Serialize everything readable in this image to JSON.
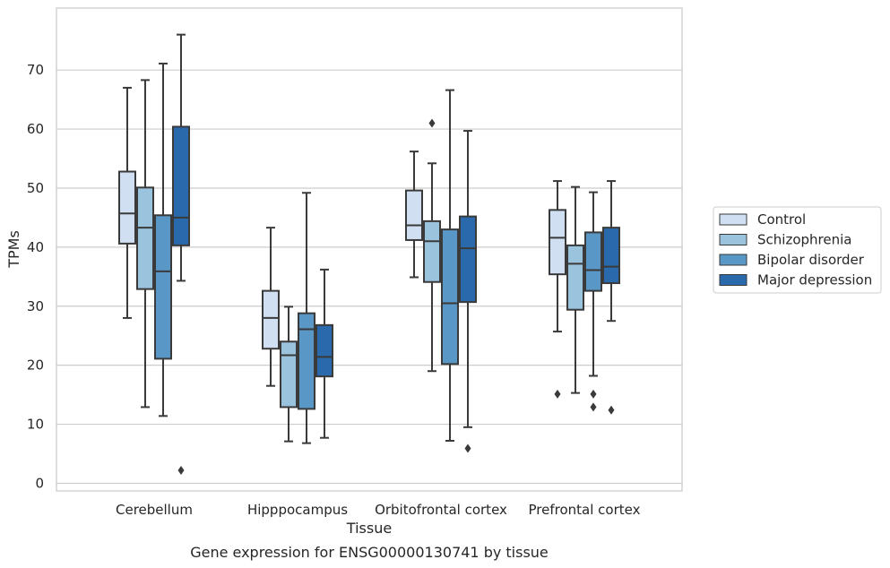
{
  "chart_data": {
    "type": "box",
    "caption": "Gene expression for ENSG00000130741 by tissue",
    "xlabel": "Tissue",
    "ylabel": "TPMs",
    "ylim": [
      -1.3,
      80.5
    ],
    "yticks": [
      0,
      10,
      20,
      30,
      40,
      50,
      60,
      70
    ],
    "grid": "horizontal",
    "legend_position": "right",
    "categories": [
      "Cerebellum",
      "Hipppocampus",
      "Orbitofrontal cortex",
      "Prefrontal cortex"
    ],
    "series": [
      {
        "name": "Control",
        "color": "#d0e0f2",
        "boxes": [
          {
            "whisker_low": 28.0,
            "q1": 40.6,
            "median": 45.7,
            "q3": 52.8,
            "whisker_high": 67.0,
            "outliers": []
          },
          {
            "whisker_low": 16.5,
            "q1": 22.8,
            "median": 28.0,
            "q3": 32.6,
            "whisker_high": 43.3,
            "outliers": []
          },
          {
            "whisker_low": 34.9,
            "q1": 41.2,
            "median": 43.7,
            "q3": 49.6,
            "whisker_high": 56.2,
            "outliers": []
          },
          {
            "whisker_low": 25.7,
            "q1": 35.4,
            "median": 41.6,
            "q3": 46.3,
            "whisker_high": 51.2,
            "outliers": [
              15.1
            ]
          }
        ]
      },
      {
        "name": "Schizophrenia",
        "color": "#9ac3dd",
        "boxes": [
          {
            "whisker_low": 12.9,
            "q1": 32.9,
            "median": 43.3,
            "q3": 50.1,
            "whisker_high": 68.3,
            "outliers": []
          },
          {
            "whisker_low": 7.1,
            "q1": 12.9,
            "median": 21.7,
            "q3": 24.0,
            "whisker_high": 29.9,
            "outliers": []
          },
          {
            "whisker_low": 19.0,
            "q1": 34.1,
            "median": 41.0,
            "q3": 44.4,
            "whisker_high": 54.2,
            "outliers": [
              61.0
            ]
          },
          {
            "whisker_low": 15.3,
            "q1": 29.4,
            "median": 37.2,
            "q3": 40.3,
            "whisker_high": 50.2,
            "outliers": []
          }
        ]
      },
      {
        "name": "Bipolar disorder",
        "color": "#5897c6",
        "boxes": [
          {
            "whisker_low": 11.4,
            "q1": 21.1,
            "median": 35.9,
            "q3": 45.4,
            "whisker_high": 71.1,
            "outliers": []
          },
          {
            "whisker_low": 6.8,
            "q1": 12.6,
            "median": 26.1,
            "q3": 28.8,
            "whisker_high": 49.2,
            "outliers": []
          },
          {
            "whisker_low": 7.2,
            "q1": 20.2,
            "median": 30.5,
            "q3": 43.0,
            "whisker_high": 66.6,
            "outliers": []
          },
          {
            "whisker_low": 18.2,
            "q1": 32.6,
            "median": 36.1,
            "q3": 42.5,
            "whisker_high": 49.3,
            "outliers": [
              15.1,
              12.9
            ]
          }
        ]
      },
      {
        "name": "Major depression",
        "color": "#2a6aac",
        "boxes": [
          {
            "whisker_low": 34.3,
            "q1": 40.3,
            "median": 45.0,
            "q3": 60.4,
            "whisker_high": 76.0,
            "outliers": [
              2.2
            ]
          },
          {
            "whisker_low": 7.7,
            "q1": 18.1,
            "median": 21.4,
            "q3": 26.8,
            "whisker_high": 36.2,
            "outliers": []
          },
          {
            "whisker_low": 9.5,
            "q1": 30.7,
            "median": 39.8,
            "q3": 45.2,
            "whisker_high": 59.7,
            "outliers": [
              5.9
            ]
          },
          {
            "whisker_low": 27.5,
            "q1": 33.9,
            "median": 36.7,
            "q3": 43.3,
            "whisker_high": 51.2,
            "outliers": [
              12.4
            ]
          }
        ]
      }
    ]
  }
}
